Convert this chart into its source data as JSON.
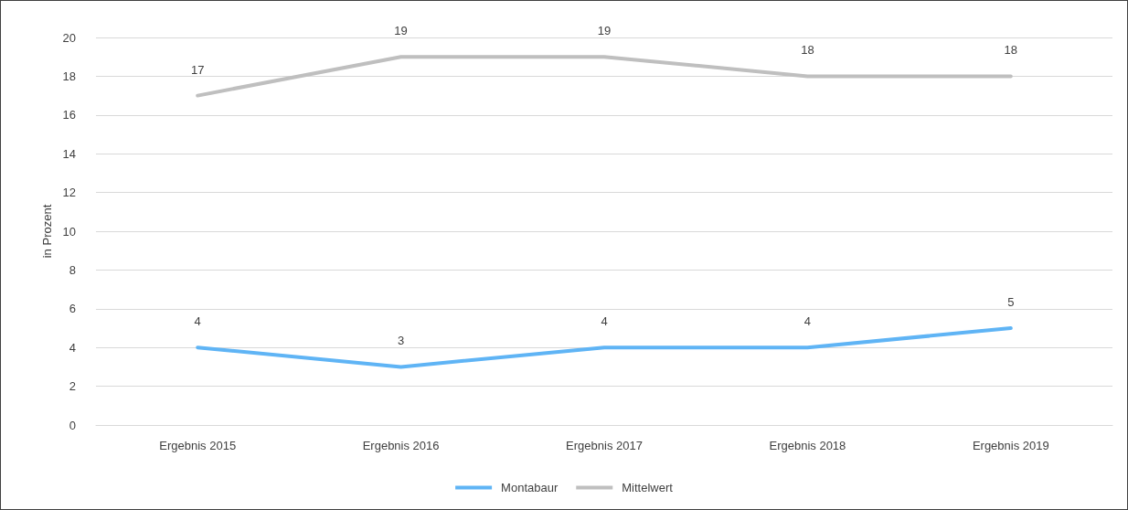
{
  "chart_data": {
    "type": "line",
    "ylabel": "in Prozent",
    "categories": [
      "Ergebnis 2015",
      "Ergebnis 2016",
      "Ergebnis 2017",
      "Ergebnis 2018",
      "Ergebnis 2019"
    ],
    "series": [
      {
        "name": "Montabaur",
        "color": "#5fb4f5",
        "values": [
          4,
          3,
          4,
          4,
          5
        ]
      },
      {
        "name": "Mittelwert",
        "color": "#bfbfbf",
        "values": [
          17,
          19,
          19,
          18,
          18
        ]
      }
    ],
    "ylim": [
      0,
      20
    ],
    "yticks": [
      0,
      2,
      4,
      6,
      8,
      10,
      12,
      14,
      16,
      18,
      20
    ],
    "grid": "y",
    "legend": "bottom",
    "data_labels": true,
    "marker": "none",
    "line_style": "solid"
  }
}
